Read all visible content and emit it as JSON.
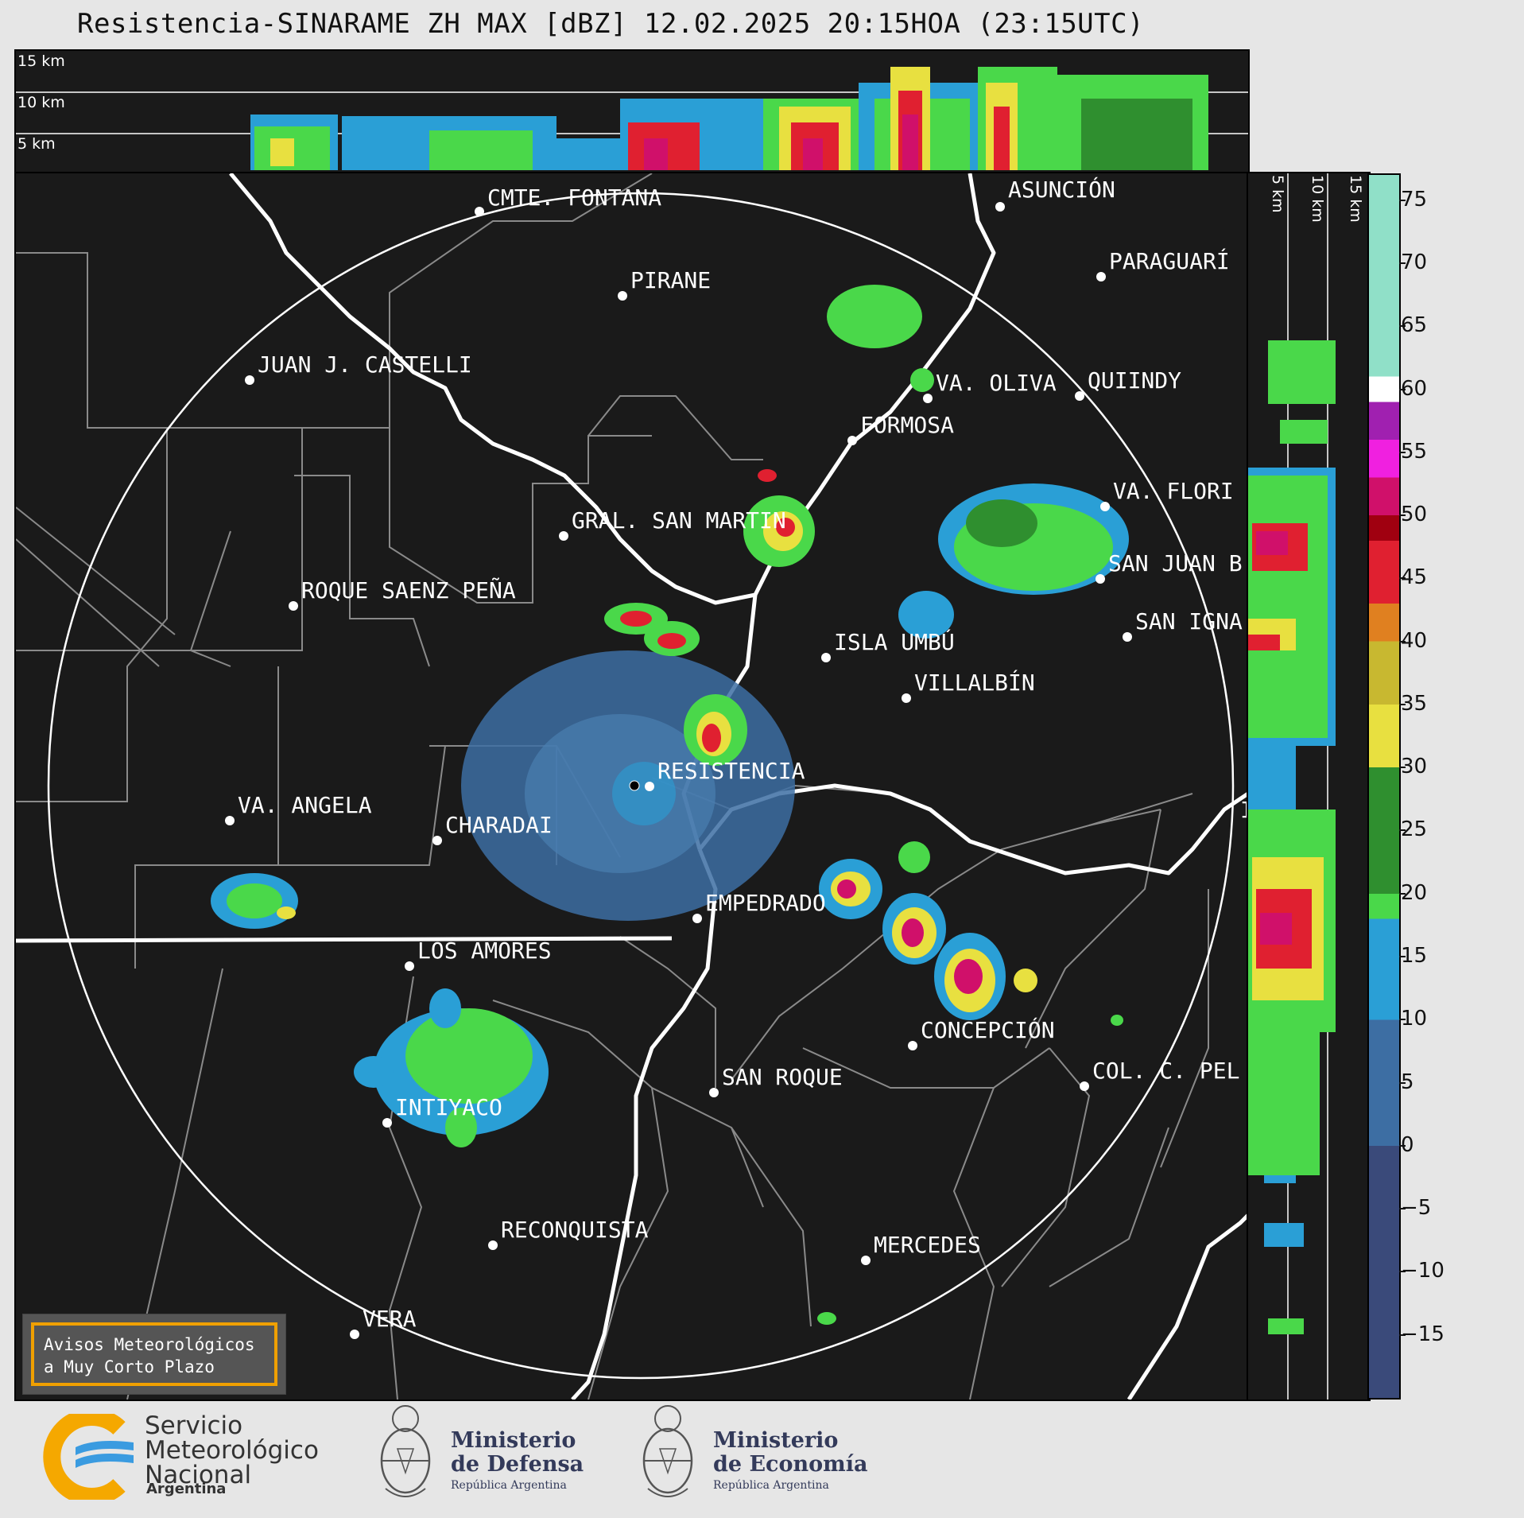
{
  "title": "Resistencia-SINARAME ZH MAX [dBZ] 12.02.2025 20:15HOA (23:15UTC)",
  "top_panel": {
    "height_labels": [
      "15 km",
      "10 km",
      "5 km"
    ]
  },
  "side_panel": {
    "height_labels": [
      "5 km",
      "10 km",
      "15 km"
    ]
  },
  "colorbar": {
    "ticks": [
      "75",
      "70",
      "65",
      "60",
      "55",
      "50",
      "45",
      "40",
      "35",
      "30",
      "25",
      "20",
      "15",
      "10",
      "5",
      "0",
      "−5",
      "−10",
      "−15"
    ],
    "range_min": -20,
    "range_max": 77,
    "stops": [
      {
        "from": -20,
        "to": 0,
        "color": "#3a4a7a"
      },
      {
        "from": 0,
        "to": 10,
        "color": "#3d6ea3"
      },
      {
        "from": 10,
        "to": 18,
        "color": "#2a9fd6"
      },
      {
        "from": 18,
        "to": 20,
        "color": "#4ad84a"
      },
      {
        "from": 20,
        "to": 30,
        "color": "#2f8f2f"
      },
      {
        "from": 30,
        "to": 35,
        "color": "#e8e040"
      },
      {
        "from": 35,
        "to": 40,
        "color": "#c8b830"
      },
      {
        "from": 40,
        "to": 43,
        "color": "#e08020"
      },
      {
        "from": 43,
        "to": 48,
        "color": "#e02030"
      },
      {
        "from": 48,
        "to": 50,
        "color": "#a00010"
      },
      {
        "from": 50,
        "to": 53,
        "color": "#d0106a"
      },
      {
        "from": 53,
        "to": 56,
        "color": "#f020e0"
      },
      {
        "from": 56,
        "to": 59,
        "color": "#a020b0"
      },
      {
        "from": 59,
        "to": 61,
        "color": "#ffffff"
      },
      {
        "from": 61,
        "to": 77,
        "color": "#90e0c8"
      }
    ]
  },
  "cities": [
    {
      "name": "CMTE. FONTANA"
    },
    {
      "name": "ASUNCIÓN"
    },
    {
      "name": "PARAGUARÍ"
    },
    {
      "name": "PIRANE"
    },
    {
      "name": "JUAN J. CASTELLI"
    },
    {
      "name": "VA. OLIVA"
    },
    {
      "name": "QUIINDY"
    },
    {
      "name": "FORMOSA"
    },
    {
      "name": "VA. FLORI"
    },
    {
      "name": "GRAL. SAN MARTIN"
    },
    {
      "name": "SAN JUAN B"
    },
    {
      "name": "ROQUE SAENZ PEÑA"
    },
    {
      "name": "SAN IGNA"
    },
    {
      "name": "ISLA UMBÚ"
    },
    {
      "name": "VILLALBÍN"
    },
    {
      "name": "RESISTENCIA"
    },
    {
      "name": "VA. ANGELA"
    },
    {
      "name": "CHARADAI"
    },
    {
      "name": "IT"
    },
    {
      "name": "EMPEDRADO"
    },
    {
      "name": "LOS AMORES"
    },
    {
      "name": "CONCEPCIÓN"
    },
    {
      "name": "COL. C. PEL"
    },
    {
      "name": "SAN ROQUE"
    },
    {
      "name": "INTIYACO"
    },
    {
      "name": "RECONQUISTA"
    },
    {
      "name": "MERCEDES"
    },
    {
      "name": "VERA"
    }
  ],
  "warning": {
    "line1": "Avisos Meteorológicos",
    "line2": "a Muy Corto Plazo"
  },
  "logos": {
    "smn": {
      "line1": "Servicio",
      "line2": "Meteorológico",
      "line3": "Nacional",
      "sub": "Argentina"
    },
    "defensa": {
      "line1": "Ministerio",
      "line2": "de Defensa",
      "sub": "República Argentina"
    },
    "economia": {
      "line1": "Ministerio",
      "line2": "de Economía",
      "sub": "República Argentina"
    }
  }
}
